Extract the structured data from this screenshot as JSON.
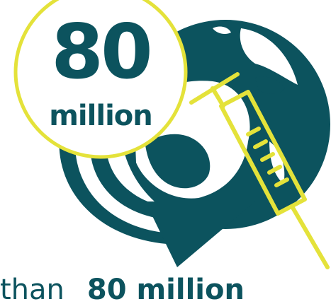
{
  "stat": {
    "number": "80",
    "unit": "million"
  },
  "caption": {
    "plain": "than",
    "strong": "80 million"
  },
  "colors": {
    "teal": "#0c535e",
    "yellow": "#e4e23a",
    "white": "#ffffff"
  },
  "icons": [
    "globe-icon",
    "circular-arrow-icon",
    "syringe-icon",
    "badge-circle"
  ]
}
